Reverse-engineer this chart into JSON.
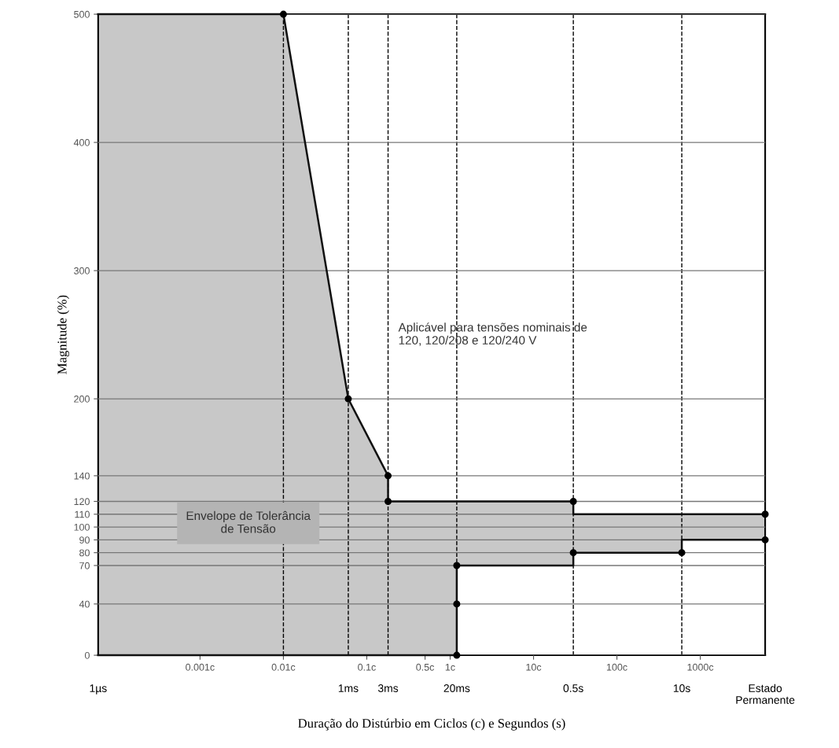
{
  "chart_data": {
    "type": "area",
    "title": null,
    "xlabel": "Duração do Distúrbio em Ciclos (c) e Segundos (s)",
    "ylabel": "Magnitude (%)",
    "log": "x",
    "xlim": [
      6e-05,
      6000
    ],
    "ylim": [
      0,
      500
    ],
    "xticks": [
      {
        "value": 0.001,
        "label": "0.001c"
      },
      {
        "value": 0.01,
        "label": "0.01c"
      },
      {
        "value": 0.1,
        "label": "0.1c"
      },
      {
        "value": 0.5,
        "label": "0.5c"
      },
      {
        "value": 1,
        "label": "1c"
      },
      {
        "value": 10,
        "label": "10c"
      },
      {
        "value": 100,
        "label": "100c"
      },
      {
        "value": 1000,
        "label": "1000c"
      }
    ],
    "yticks": [
      0,
      40,
      70,
      80,
      90,
      100,
      110,
      120,
      140,
      200,
      300,
      400,
      500
    ],
    "grid": "y",
    "series": [
      {
        "color": "#c8c8c8",
        "x": [
          6e-05,
          0.01,
          0.06,
          0.18,
          0.18,
          30,
          30,
          6000
        ],
        "values": [
          500,
          500,
          200,
          140,
          120,
          120,
          110,
          110
        ]
      },
      {
        "color": "#ffffff",
        "x": [
          6e-05,
          1.2,
          1.2,
          30,
          30,
          600,
          600,
          6000
        ],
        "values": [
          0,
          0,
          70,
          70,
          80,
          80,
          90,
          90
        ]
      },
      {
        "type": "scatter",
        "color": "#000000",
        "marker": "circle",
        "x": [
          0.01,
          0.06,
          0.18,
          0.18,
          1.2,
          1.2,
          1.2,
          30,
          30,
          600,
          6000,
          6000
        ],
        "values": [
          500,
          200,
          140,
          120,
          70,
          40,
          0,
          120,
          80,
          80,
          110,
          90
        ]
      }
    ],
    "ref_lines": [
      {
        "axis": "x",
        "value": 0.01,
        "color": "#000000",
        "line_style": "dashed"
      },
      {
        "axis": "x",
        "value": 0.06,
        "label": "1ms",
        "color": "#000000",
        "line_style": "dashed"
      },
      {
        "axis": "x",
        "value": 0.18,
        "label": "3ms",
        "color": "#000000",
        "line_style": "dashed"
      },
      {
        "axis": "x",
        "value": 1.2,
        "label": "20ms",
        "color": "#000000",
        "line_style": "dashed"
      },
      {
        "axis": "x",
        "value": 30,
        "label": "0.5s",
        "color": "#000000",
        "line_style": "dashed"
      },
      {
        "axis": "x",
        "value": 600,
        "label": "10s",
        "color": "#000000",
        "line_style": "dashed"
      }
    ],
    "annotations": [
      "Aplicável para tensões nominais de\n120, 120/208 e 120/240 V",
      "Envelope de Tolerância\nde Tensão",
      "1µs",
      "Estado\nPermanente"
    ]
  }
}
